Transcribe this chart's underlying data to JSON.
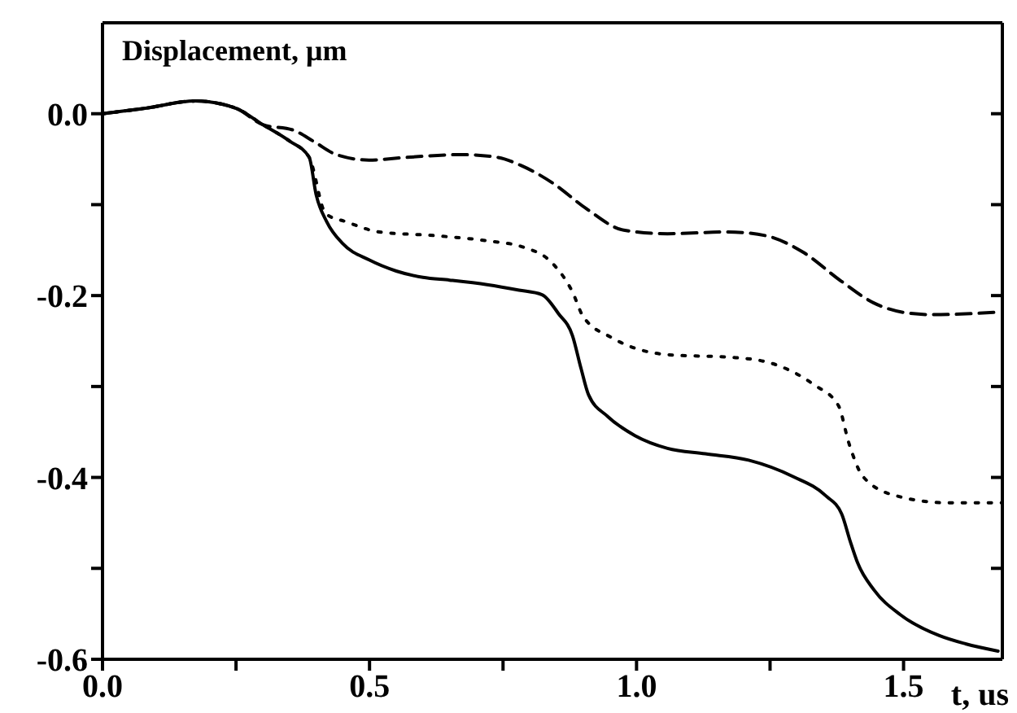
{
  "chart_data": {
    "type": "line",
    "ylabel": "Displacement, μm",
    "xlabel": "t, us",
    "xlim": [
      0,
      1.685
    ],
    "ylim": [
      -0.6,
      0.1
    ],
    "xticks": [
      {
        "value": 0,
        "label": "0.0"
      },
      {
        "value": 0.25,
        "label": null
      },
      {
        "value": 0.5,
        "label": "0.5"
      },
      {
        "value": 0.75,
        "label": null
      },
      {
        "value": 1,
        "label": "1.0"
      },
      {
        "value": 1.25,
        "label": null
      },
      {
        "value": 1.5,
        "label": "1.5"
      }
    ],
    "yticks": [
      {
        "value": -0.6,
        "label": "-0.6"
      },
      {
        "value": -0.5,
        "label": null
      },
      {
        "value": -0.4,
        "label": "-0.4"
      },
      {
        "value": -0.3,
        "label": null
      },
      {
        "value": -0.2,
        "label": "-0.2"
      },
      {
        "value": -0.1,
        "label": null
      },
      {
        "value": 0,
        "label": "0.0"
      }
    ],
    "marker": "none",
    "series": [
      {
        "color": "#000000",
        "line_style": "solid",
        "x": [
          0,
          0.08,
          0.174,
          0.25,
          0.3,
          0.35,
          0.387,
          0.4,
          0.42,
          0.45,
          0.5,
          0.55,
          0.6,
          0.65,
          0.72,
          0.78,
          0.823,
          0.854,
          0.88,
          0.896,
          0.91,
          0.946,
          0.997,
          1.058,
          1.129,
          1.21,
          1.293,
          1.354,
          1.384,
          1.4,
          1.414,
          1.445,
          1.494,
          1.567,
          1.616,
          1.677
        ],
        "values": [
          0,
          0.006,
          0.014,
          0.006,
          -0.012,
          -0.03,
          -0.048,
          -0.089,
          -0.119,
          -0.143,
          -0.161,
          -0.173,
          -0.18,
          -0.183,
          -0.188,
          -0.194,
          -0.199,
          -0.22,
          -0.244,
          -0.28,
          -0.309,
          -0.333,
          -0.354,
          -0.368,
          -0.374,
          -0.381,
          -0.399,
          -0.42,
          -0.44,
          -0.47,
          -0.494,
          -0.524,
          -0.551,
          -0.574,
          -0.583,
          -0.591
        ]
      },
      {
        "color": "#000000",
        "line_style": "dotted",
        "x": [
          0,
          0.08,
          0.174,
          0.25,
          0.3,
          0.35,
          0.387,
          0.418,
          0.457,
          0.518,
          0.621,
          0.723,
          0.784,
          0.845,
          0.88,
          0.9,
          0.956,
          1.058,
          1.18,
          1.25,
          1.332,
          1.378,
          1.398,
          1.424,
          1.485,
          1.585,
          1.683
        ],
        "values": [
          0,
          0.006,
          0.014,
          0.006,
          -0.012,
          -0.03,
          -0.048,
          -0.11,
          -0.119,
          -0.13,
          -0.134,
          -0.14,
          -0.146,
          -0.166,
          -0.196,
          -0.223,
          -0.247,
          -0.265,
          -0.268,
          -0.274,
          -0.298,
          -0.321,
          -0.363,
          -0.399,
          -0.42,
          -0.428,
          -0.428
        ]
      },
      {
        "color": "#000000",
        "line_style": "dashed",
        "x": [
          0,
          0.08,
          0.174,
          0.25,
          0.3,
          0.357,
          0.397,
          0.438,
          0.499,
          0.57,
          0.671,
          0.74,
          0.784,
          0.845,
          0.905,
          0.976,
          1.058,
          1.17,
          1.241,
          1.311,
          1.383,
          1.444,
          1.505,
          1.555,
          1.683
        ],
        "values": [
          0,
          0.006,
          0.014,
          0.006,
          -0.012,
          -0.018,
          -0.031,
          -0.045,
          -0.051,
          -0.048,
          -0.045,
          -0.048,
          -0.057,
          -0.077,
          -0.104,
          -0.128,
          -0.132,
          -0.13,
          -0.134,
          -0.152,
          -0.184,
          -0.208,
          -0.219,
          -0.221,
          -0.218
        ]
      }
    ]
  }
}
